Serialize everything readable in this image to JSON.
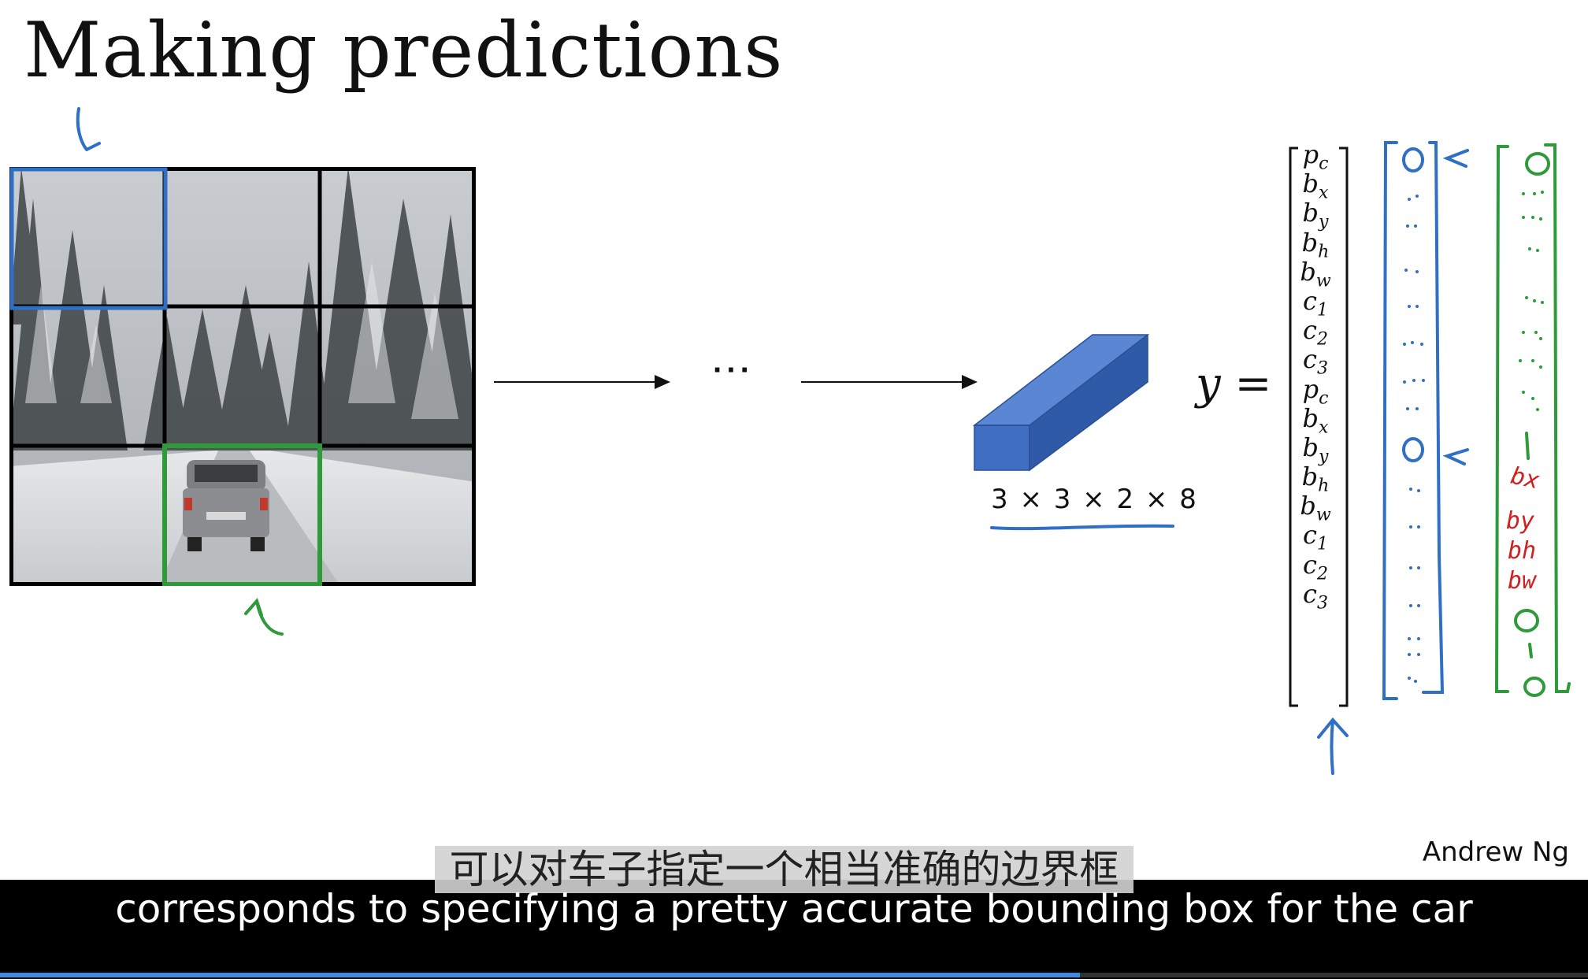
{
  "slide": {
    "title": "Making predictions",
    "dims_label": "3 × 3 × 2 × 8",
    "ellipsis": "···",
    "y_equals": "y =",
    "vector": [
      {
        "base": "p",
        "sub": "c"
      },
      {
        "base": "b",
        "sub": "x"
      },
      {
        "base": "b",
        "sub": "y"
      },
      {
        "base": "b",
        "sub": "h"
      },
      {
        "base": "b",
        "sub": "w"
      },
      {
        "base": "c",
        "sub": "1"
      },
      {
        "base": "c",
        "sub": "2"
      },
      {
        "base": "c",
        "sub": "3"
      },
      {
        "base": "p",
        "sub": "c"
      },
      {
        "base": "b",
        "sub": "x"
      },
      {
        "base": "b",
        "sub": "y"
      },
      {
        "base": "b",
        "sub": "h"
      },
      {
        "base": "b",
        "sub": "w"
      },
      {
        "base": "c",
        "sub": "1"
      },
      {
        "base": "c",
        "sub": "2"
      },
      {
        "base": "c",
        "sub": "3"
      }
    ],
    "handwritten_red": [
      "bx",
      "by",
      "bh",
      "bw"
    ],
    "author": "Andrew Ng"
  },
  "subtitles": {
    "chinese": "可以对车子指定一个相当准确的边界框",
    "english": "corresponds to specifying a pretty accurate bounding box for the car"
  },
  "player": {
    "progress_fraction": 0.68
  },
  "colors": {
    "blue": "#2f6fc4",
    "green": "#2e9a3a",
    "red": "#d22020",
    "cube": "#4472c4"
  }
}
